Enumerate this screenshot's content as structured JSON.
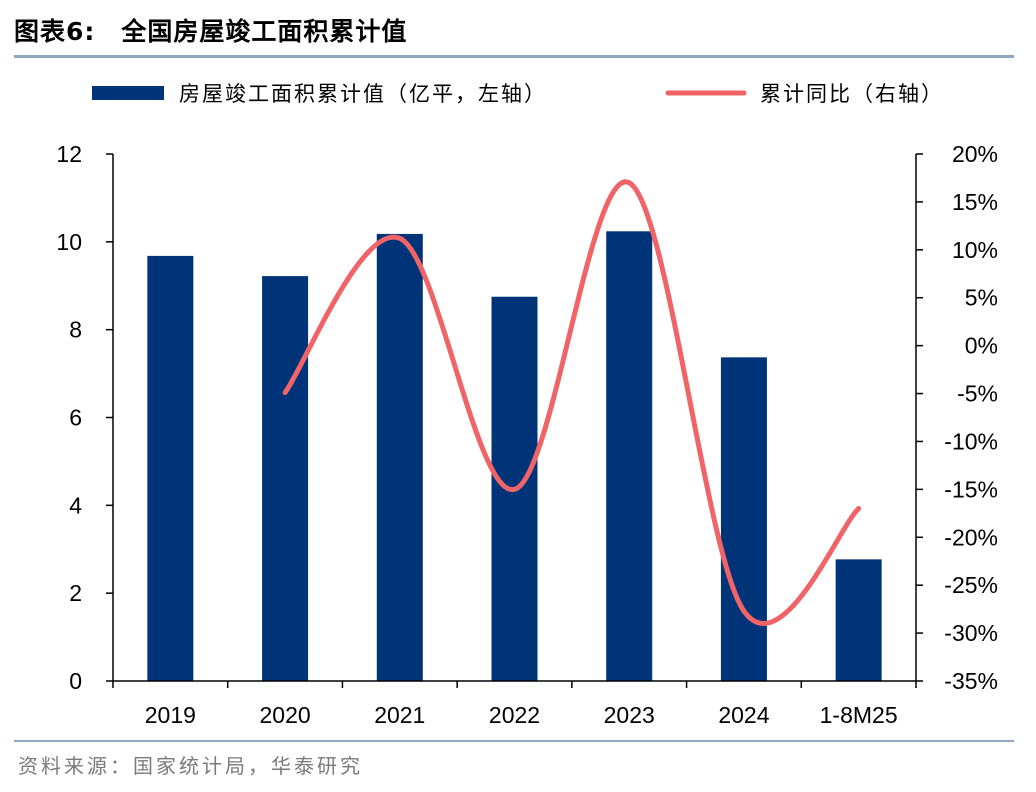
{
  "figure": {
    "label": "图表6:",
    "title": "全国房屋竣工面积累计值",
    "source": "资料来源：国家统计局，华泰研究"
  },
  "chart_data": {
    "type": "bar+line",
    "categories": [
      "2019",
      "2020",
      "2021",
      "2022",
      "2023",
      "2024",
      "1-8M25"
    ],
    "series": [
      {
        "name": "房屋竣工面积累计值（亿平，左轴）",
        "type": "bar",
        "axis": "left",
        "color": "#003478",
        "values": [
          9.68,
          9.22,
          10.18,
          8.75,
          10.24,
          7.37,
          2.77
        ]
      },
      {
        "name": "累计同比（右轴）",
        "type": "line",
        "axis": "right",
        "color": "#f06468",
        "values": [
          null,
          -4.9,
          11.2,
          -15.0,
          17.0,
          -27.7,
          -17.0
        ]
      }
    ],
    "left_axis": {
      "min": 0,
      "max": 12,
      "ticks": [
        "0",
        "2",
        "4",
        "6",
        "8",
        "10",
        "12"
      ]
    },
    "right_axis": {
      "min": -35,
      "max": 20,
      "ticks": [
        "-35%",
        "-30%",
        "-25%",
        "-20%",
        "-15%",
        "-10%",
        "-5%",
        "0%",
        "5%",
        "10%",
        "15%",
        "20%"
      ]
    },
    "grid": false,
    "legend": "top"
  }
}
